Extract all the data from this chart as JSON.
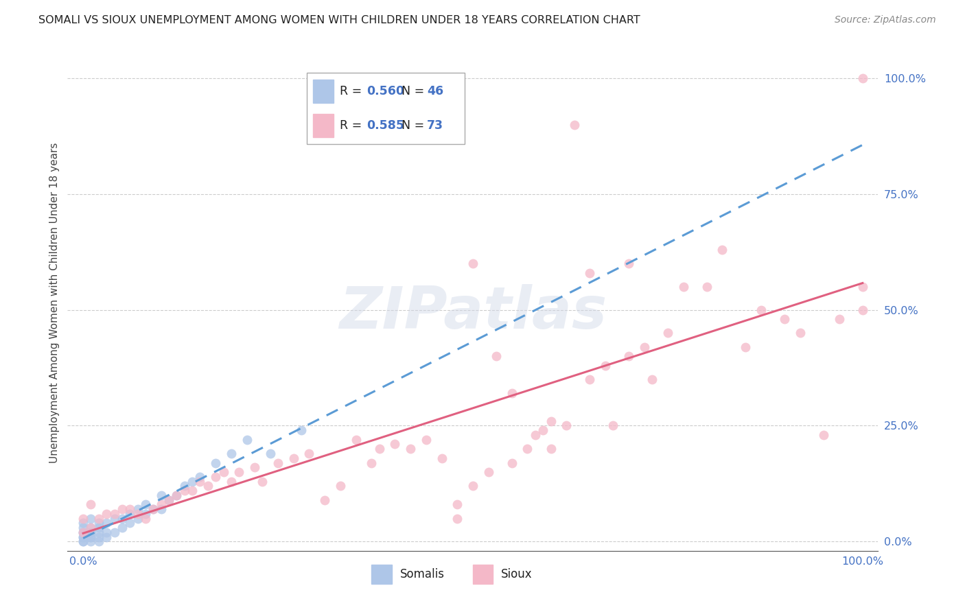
{
  "title": "SOMALI VS SIOUX UNEMPLOYMENT AMONG WOMEN WITH CHILDREN UNDER 18 YEARS CORRELATION CHART",
  "source": "Source: ZipAtlas.com",
  "ylabel": "Unemployment Among Women with Children Under 18 years",
  "ytick_labels": [
    "0.0%",
    "25.0%",
    "50.0%",
    "75.0%",
    "100.0%"
  ],
  "ytick_values": [
    0.0,
    0.25,
    0.5,
    0.75,
    1.0
  ],
  "xtick_left_label": "0.0%",
  "xtick_right_label": "100.0%",
  "xlim": [
    -0.02,
    1.02
  ],
  "ylim": [
    -0.02,
    1.05
  ],
  "somali_scatter_color": "#aec6e8",
  "sioux_scatter_color": "#f4b8c8",
  "somali_line_color": "#5b9bd5",
  "sioux_line_color": "#e06080",
  "somali_R": 0.56,
  "somali_N": 46,
  "sioux_R": 0.585,
  "sioux_N": 73,
  "legend_label_somalis": "Somalis",
  "legend_label_sioux": "Sioux",
  "watermark_text": "ZIPatlas",
  "background_color": "#ffffff",
  "grid_color": "#cccccc",
  "title_color": "#222222",
  "source_color": "#888888",
  "tick_color": "#4472c4",
  "ylabel_color": "#444444",
  "somali_x": [
    0.0,
    0.0,
    0.0,
    0.0,
    0.0,
    0.0,
    0.0,
    0.0,
    0.01,
    0.01,
    0.01,
    0.01,
    0.01,
    0.01,
    0.01,
    0.02,
    0.02,
    0.02,
    0.02,
    0.02,
    0.03,
    0.03,
    0.03,
    0.04,
    0.04,
    0.05,
    0.05,
    0.06,
    0.06,
    0.07,
    0.07,
    0.08,
    0.08,
    0.09,
    0.1,
    0.1,
    0.11,
    0.12,
    0.13,
    0.14,
    0.15,
    0.17,
    0.19,
    0.21,
    0.24,
    0.28
  ],
  "somali_y": [
    0.0,
    0.0,
    0.01,
    0.01,
    0.02,
    0.02,
    0.03,
    0.04,
    0.0,
    0.01,
    0.01,
    0.02,
    0.02,
    0.03,
    0.05,
    0.0,
    0.01,
    0.02,
    0.03,
    0.04,
    0.01,
    0.02,
    0.04,
    0.02,
    0.05,
    0.03,
    0.05,
    0.04,
    0.06,
    0.05,
    0.07,
    0.06,
    0.08,
    0.07,
    0.07,
    0.1,
    0.09,
    0.1,
    0.12,
    0.13,
    0.14,
    0.17,
    0.19,
    0.22,
    0.19,
    0.24
  ],
  "sioux_x": [
    0.0,
    0.0,
    0.01,
    0.01,
    0.02,
    0.03,
    0.04,
    0.05,
    0.06,
    0.07,
    0.08,
    0.09,
    0.1,
    0.11,
    0.12,
    0.13,
    0.14,
    0.15,
    0.16,
    0.17,
    0.18,
    0.19,
    0.2,
    0.22,
    0.23,
    0.25,
    0.27,
    0.29,
    0.31,
    0.33,
    0.35,
    0.37,
    0.38,
    0.4,
    0.42,
    0.44,
    0.46,
    0.48,
    0.5,
    0.52,
    0.55,
    0.57,
    0.59,
    0.6,
    0.62,
    0.65,
    0.67,
    0.7,
    0.72,
    0.75,
    0.77,
    0.8,
    0.82,
    0.85,
    0.87,
    0.9,
    0.92,
    0.95,
    0.97,
    1.0,
    1.0,
    1.0,
    0.5,
    0.53,
    0.55,
    0.58,
    0.48,
    0.6,
    0.63,
    0.65,
    0.68,
    0.7,
    0.73
  ],
  "sioux_y": [
    0.02,
    0.05,
    0.03,
    0.08,
    0.05,
    0.06,
    0.06,
    0.07,
    0.07,
    0.06,
    0.05,
    0.07,
    0.08,
    0.09,
    0.1,
    0.11,
    0.11,
    0.13,
    0.12,
    0.14,
    0.15,
    0.13,
    0.15,
    0.16,
    0.13,
    0.17,
    0.18,
    0.19,
    0.09,
    0.12,
    0.22,
    0.17,
    0.2,
    0.21,
    0.2,
    0.22,
    0.18,
    0.08,
    0.12,
    0.15,
    0.17,
    0.2,
    0.24,
    0.26,
    0.25,
    0.35,
    0.38,
    0.4,
    0.42,
    0.45,
    0.55,
    0.55,
    0.63,
    0.42,
    0.5,
    0.48,
    0.45,
    0.23,
    0.48,
    0.5,
    0.55,
    1.0,
    0.6,
    0.4,
    0.32,
    0.23,
    0.05,
    0.2,
    0.9,
    0.58,
    0.25,
    0.6,
    0.35
  ]
}
